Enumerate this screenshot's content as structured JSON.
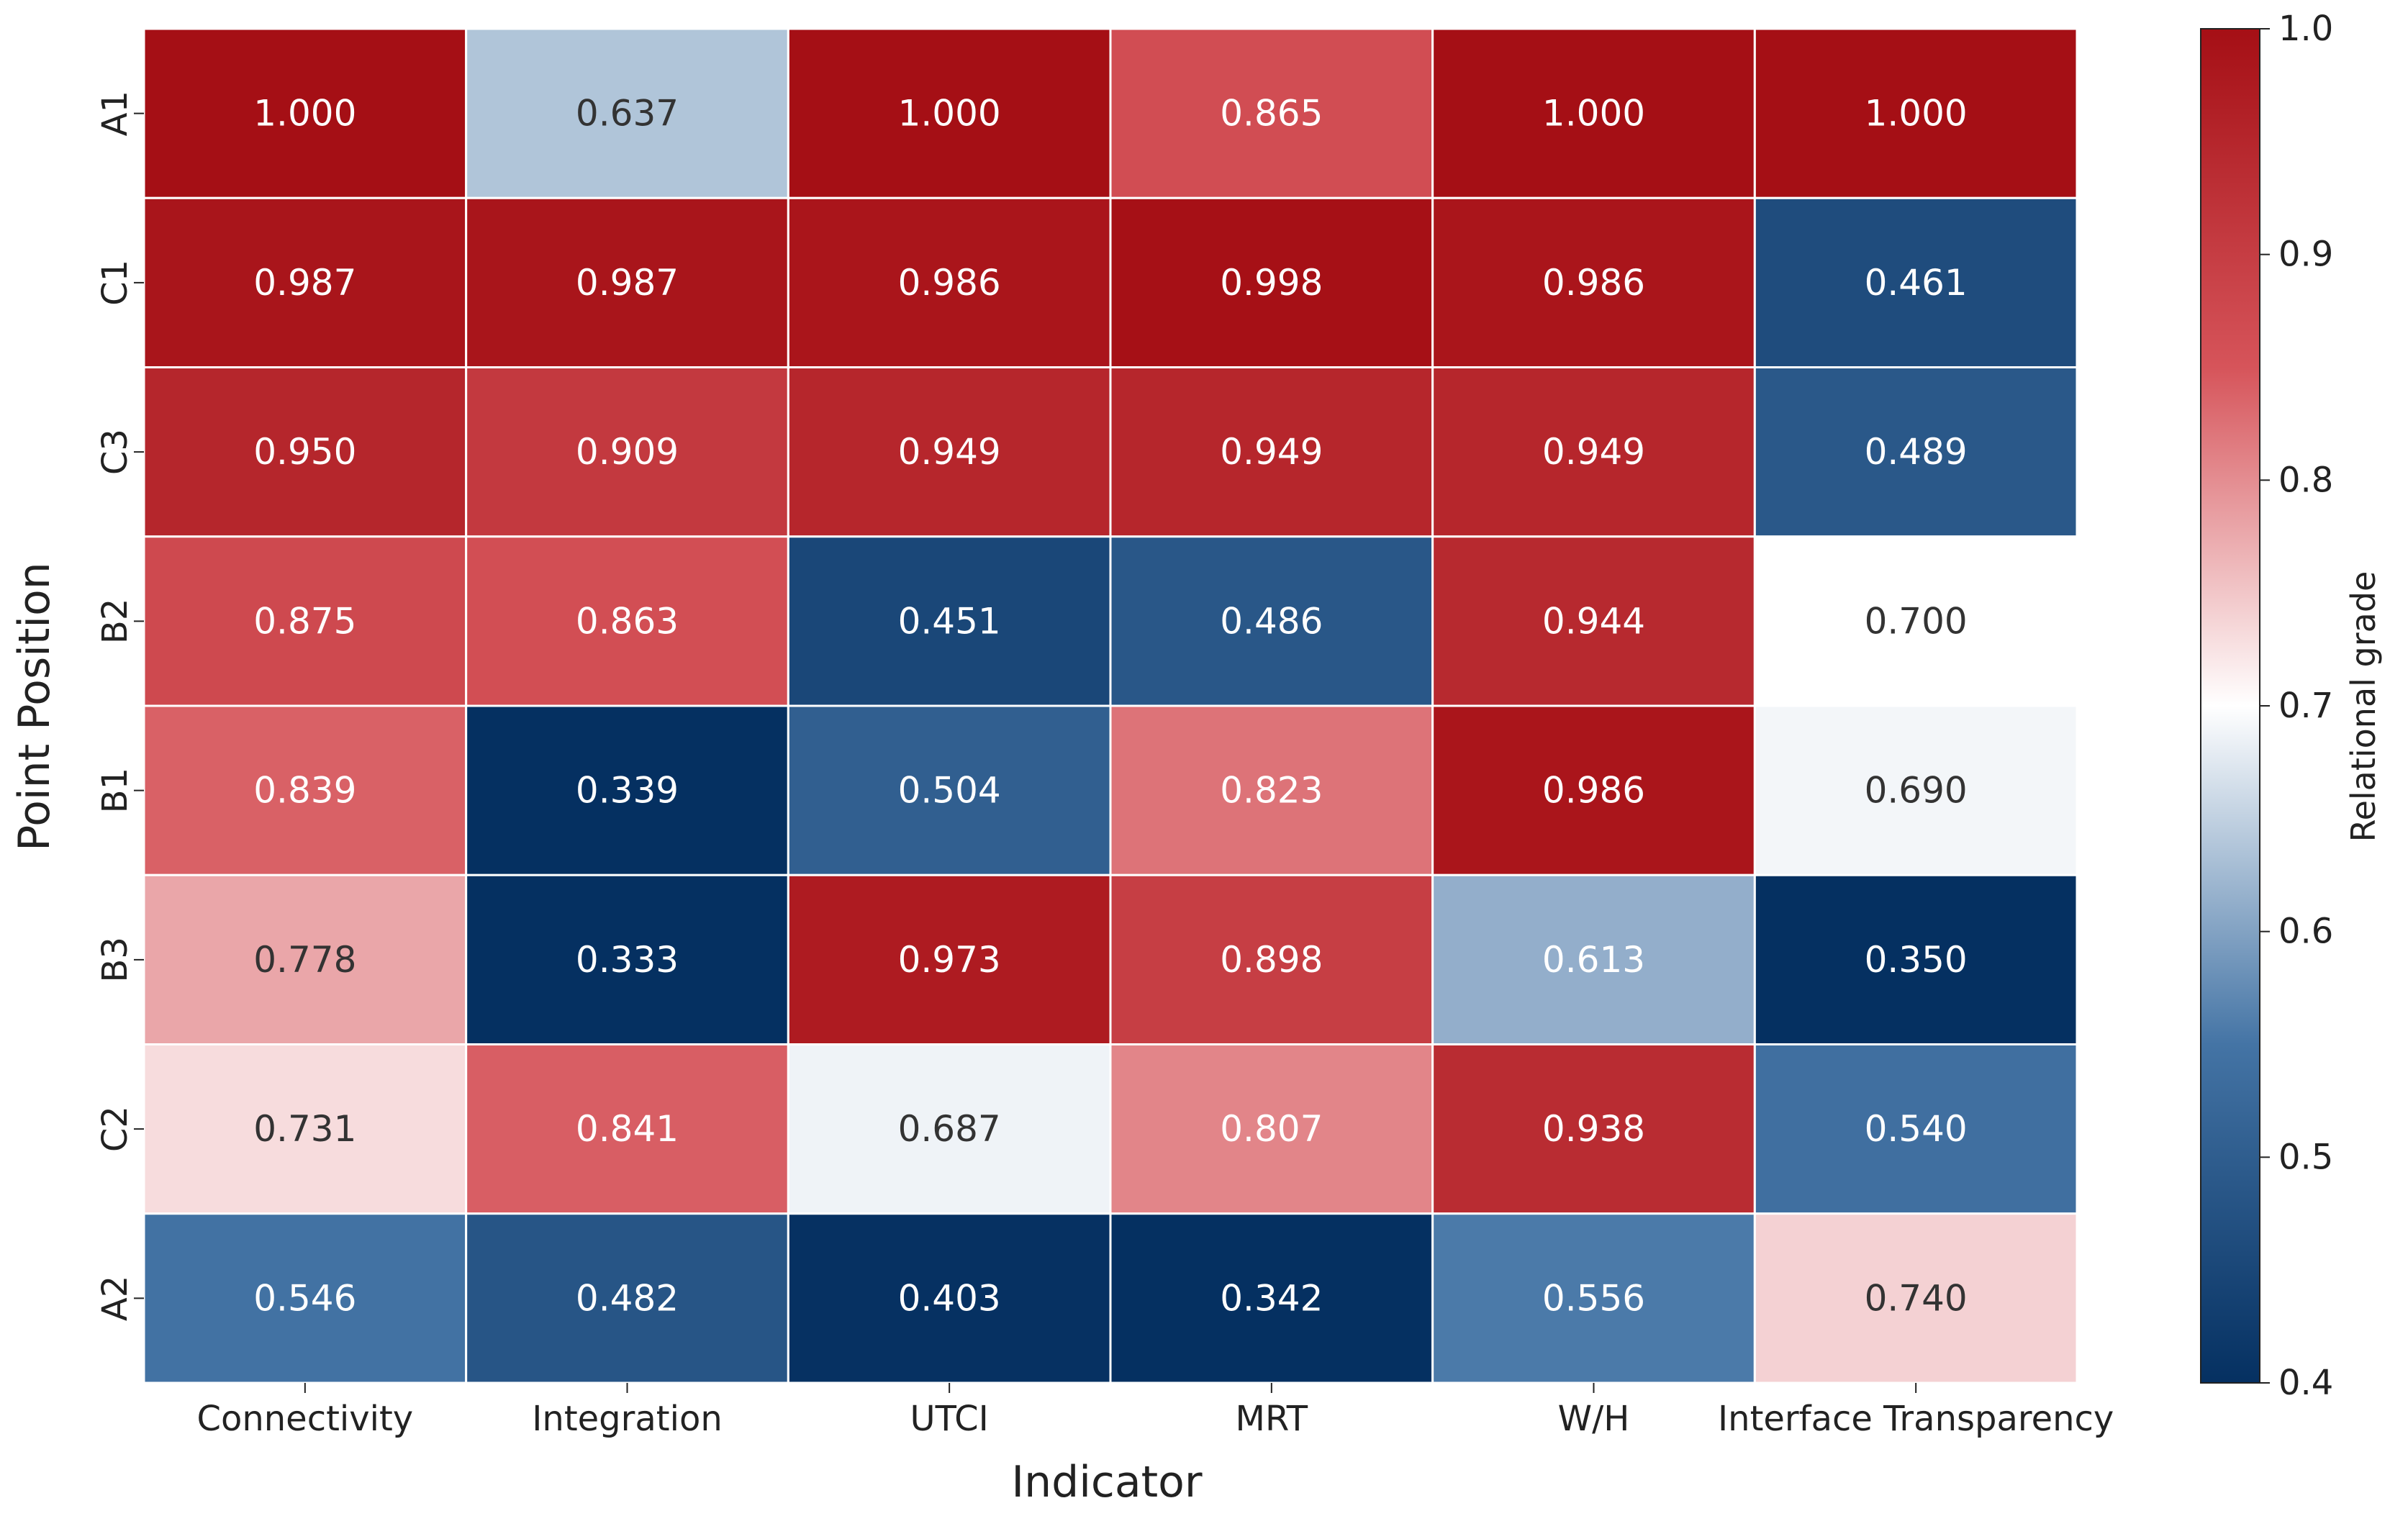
{
  "chart_data": {
    "type": "heatmap",
    "title": "",
    "xlabel": "Indicator",
    "ylabel": "Point Position",
    "x_categories": [
      "Connectivity",
      "Integration",
      "UTCI",
      "MRT",
      "W/H",
      "Interface Transparency"
    ],
    "y_categories": [
      "A1",
      "C1",
      "C3",
      "B2",
      "B1",
      "B3",
      "C2",
      "A2"
    ],
    "values": [
      [
        1.0,
        0.637,
        1.0,
        0.865,
        1.0,
        1.0
      ],
      [
        0.987,
        0.987,
        0.986,
        0.998,
        0.986,
        0.461
      ],
      [
        0.95,
        0.909,
        0.949,
        0.949,
        0.949,
        0.489
      ],
      [
        0.875,
        0.863,
        0.451,
        0.486,
        0.944,
        0.7
      ],
      [
        0.839,
        0.339,
        0.504,
        0.823,
        0.986,
        0.69
      ],
      [
        0.778,
        0.333,
        0.973,
        0.898,
        0.613,
        0.35
      ],
      [
        0.731,
        0.841,
        0.687,
        0.807,
        0.938,
        0.54
      ],
      [
        0.546,
        0.482,
        0.403,
        0.342,
        0.556,
        0.74
      ]
    ],
    "value_format": "0.000",
    "colorbar": {
      "label": "Relational grade",
      "range": [
        0.4,
        1.0
      ],
      "ticks": [
        0.4,
        0.5,
        0.6,
        0.7,
        0.8,
        0.9,
        1.0
      ],
      "tick_labels": [
        "0.4",
        "0.5",
        "0.6",
        "0.7",
        "0.8",
        "0.9",
        "1.0"
      ],
      "center": 0.7,
      "colors": {
        "low": "#053061",
        "mid_low": "#4474a5",
        "center": "#ffffff",
        "mid_high": "#d6545a",
        "high": "#a50f15"
      }
    },
    "grid": false,
    "legend": "colorbar-right"
  }
}
